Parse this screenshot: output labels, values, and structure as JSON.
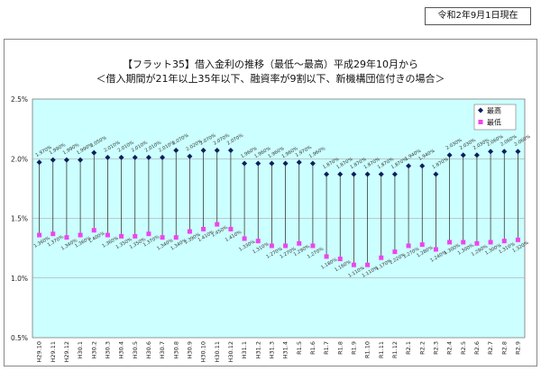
{
  "header": {
    "date_label": "令和2年9月1日現在"
  },
  "chart_data": {
    "type": "line",
    "title": "【フラット35】借入金利の推移（最低～最高）平成29年10月から",
    "subtitle": "＜借入期間が21年以上35年以下、融資率が9割以下、新機構団信付きの場合＞",
    "xlabel": "",
    "ylabel": "",
    "ylim": [
      0.5,
      2.5
    ],
    "yticks": [
      "0.5%",
      "1.0%",
      "1.5%",
      "2.0%",
      "2.5%"
    ],
    "grid": true,
    "legend_position": "top-right",
    "categories": [
      "H29.10",
      "H29.11",
      "H29.12",
      "H30.1",
      "H30.2",
      "H30.3",
      "H30.4",
      "H30.5",
      "H30.6",
      "H30.7",
      "H30.8",
      "H30.9",
      "H30.10",
      "H30.11",
      "H30.12",
      "H31.1",
      "H31.2",
      "H31.3",
      "H31.4",
      "R1.5",
      "R1.6",
      "R1.7",
      "R1.8",
      "R1.9",
      "R1.10",
      "R1.11",
      "R1.12",
      "R2.1",
      "R2.2",
      "R2.3",
      "R2.4",
      "R2.5",
      "R2.6",
      "R2.7",
      "R2.8",
      "R2.9"
    ],
    "series": [
      {
        "name": "最高",
        "color": "#0d1f5c",
        "marker": "diamond",
        "values": [
          1.97,
          1.99,
          1.99,
          1.99,
          2.05,
          2.01,
          2.01,
          2.01,
          2.01,
          2.01,
          2.07,
          2.02,
          2.07,
          2.07,
          2.07,
          1.96,
          1.96,
          1.96,
          1.96,
          1.97,
          1.96,
          1.87,
          1.87,
          1.87,
          1.87,
          1.87,
          1.87,
          1.94,
          1.94,
          1.87,
          2.03,
          2.03,
          2.03,
          2.06,
          2.06,
          2.06
        ],
        "labels": [
          "1.970%",
          "1.990%",
          "1.990%",
          "1.990%",
          "2.050%",
          "2.010%",
          "2.010%",
          "2.010%",
          "2.010%",
          "2.010%",
          "2.070%",
          "2.020%",
          "2.070%",
          "2.070%",
          "2.070%",
          "1.960%",
          "1.960%",
          "1.960%",
          "1.960%",
          "1.970%",
          "1.960%",
          "1.870%",
          "1.870%",
          "1.870%",
          "1.870%",
          "1.870%",
          "1.870%",
          "1.940%",
          "1.940%",
          "1.870%",
          "2.030%",
          "2.030%",
          "2.030%",
          "2.060%",
          "2.060%",
          "2.060%"
        ]
      },
      {
        "name": "最低",
        "color": "#ee44ee",
        "marker": "square",
        "values": [
          1.36,
          1.37,
          1.34,
          1.36,
          1.4,
          1.36,
          1.35,
          1.35,
          1.37,
          1.34,
          1.34,
          1.39,
          1.41,
          1.45,
          1.41,
          1.33,
          1.31,
          1.27,
          1.27,
          1.29,
          1.27,
          1.18,
          1.16,
          1.11,
          1.11,
          1.17,
          1.22,
          1.27,
          1.28,
          1.24,
          1.3,
          1.3,
          1.29,
          1.3,
          1.31,
          1.32
        ],
        "labels": [
          "1.360%",
          "1.370%",
          "1.340%",
          "1.360%",
          "1.400%",
          "1.360%",
          "1.350%",
          "1.350%",
          "1.370%",
          "1.340%",
          "1.340%",
          "1.390%",
          "1.410%",
          "1.450%",
          "1.410%",
          "1.330%",
          "1.310%",
          "1.270%",
          "1.270%",
          "1.290%",
          "1.270%",
          "1.180%",
          "1.160%",
          "1.110%",
          "1.110%",
          "1.170%",
          "1.220%",
          "1.270%",
          "1.280%",
          "1.240%",
          "1.300%",
          "1.300%",
          "1.290%",
          "1.300%",
          "1.310%",
          "1.320%"
        ]
      }
    ]
  }
}
